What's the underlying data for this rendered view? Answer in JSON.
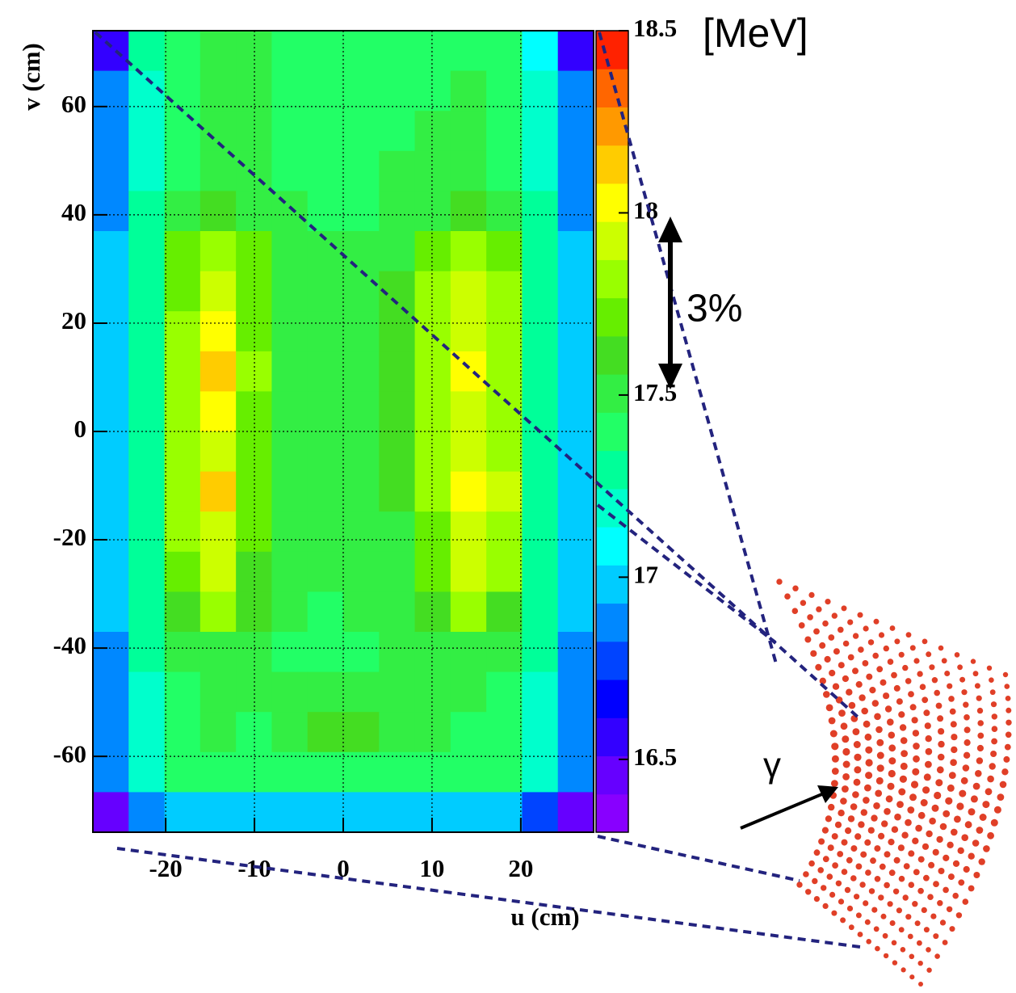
{
  "chart_data": {
    "type": "heatmap",
    "x_label": "u (cm)",
    "y_label": "v (cm)",
    "colorbar_unit": "[MeV]",
    "annotations": [
      "3%",
      "γ"
    ],
    "xlim": [
      -28.2,
      28.2
    ],
    "xticks": [
      -20,
      -10,
      0,
      10,
      20
    ],
    "ylim": [
      -74,
      74
    ],
    "yticks": [
      -60,
      -40,
      -20,
      0,
      20,
      40,
      60
    ],
    "zlim": [
      16.3,
      18.5
    ],
    "zticks": [
      16.5,
      17,
      17.5,
      18,
      18.5
    ],
    "grid": true,
    "colorscale": [
      "#8800ff",
      "#6600ff",
      "#3300ff",
      "#0000ff",
      "#0044ff",
      "#0088ff",
      "#00ccff",
      "#00ffff",
      "#00ffcc",
      "#00ff99",
      "#22ff66",
      "#33ee44",
      "#44dd22",
      "#66ee00",
      "#99ff00",
      "#ccff00",
      "#ffff00",
      "#ffcc00",
      "#ff9900",
      "#ff6600",
      "#ff2200"
    ],
    "z": [
      [
        16.6,
        17.3,
        17.4,
        17.5,
        17.5,
        17.45,
        17.45,
        17.45,
        17.45,
        17.45,
        17.4,
        17.4,
        17.1,
        16.6
      ],
      [
        16.9,
        17.2,
        17.45,
        17.55,
        17.5,
        17.45,
        17.45,
        17.45,
        17.45,
        17.45,
        17.5,
        17.45,
        17.2,
        16.9
      ],
      [
        16.9,
        17.2,
        17.45,
        17.55,
        17.5,
        17.45,
        17.4,
        17.4,
        17.45,
        17.5,
        17.5,
        17.45,
        17.2,
        16.9
      ],
      [
        16.9,
        17.2,
        17.45,
        17.55,
        17.5,
        17.45,
        17.45,
        17.45,
        17.5,
        17.5,
        17.55,
        17.45,
        17.2,
        16.9
      ],
      [
        16.9,
        17.25,
        17.5,
        17.6,
        17.55,
        17.5,
        17.45,
        17.45,
        17.5,
        17.55,
        17.6,
        17.5,
        17.25,
        16.9
      ],
      [
        16.95,
        17.3,
        17.7,
        17.85,
        17.7,
        17.55,
        17.5,
        17.5,
        17.55,
        17.7,
        17.85,
        17.7,
        17.3,
        16.95
      ],
      [
        16.95,
        17.3,
        17.75,
        17.95,
        17.75,
        17.55,
        17.5,
        17.5,
        17.6,
        17.8,
        17.95,
        17.8,
        17.3,
        16.95
      ],
      [
        16.95,
        17.3,
        17.8,
        18.0,
        17.75,
        17.55,
        17.5,
        17.5,
        17.6,
        17.85,
        17.95,
        17.85,
        17.3,
        16.95
      ],
      [
        16.95,
        17.3,
        17.85,
        18.1,
        17.8,
        17.55,
        17.5,
        17.5,
        17.6,
        17.85,
        18.0,
        17.85,
        17.3,
        16.95
      ],
      [
        16.95,
        17.3,
        17.8,
        18.0,
        17.75,
        17.55,
        17.5,
        17.5,
        17.6,
        17.8,
        17.95,
        17.85,
        17.3,
        16.95
      ],
      [
        16.95,
        17.3,
        17.8,
        17.95,
        17.75,
        17.55,
        17.5,
        17.5,
        17.6,
        17.8,
        17.95,
        17.85,
        17.3,
        16.95
      ],
      [
        16.95,
        17.3,
        17.85,
        18.1,
        17.75,
        17.55,
        17.5,
        17.5,
        17.6,
        17.8,
        18.0,
        17.9,
        17.3,
        16.95
      ],
      [
        16.95,
        17.3,
        17.8,
        17.95,
        17.7,
        17.55,
        17.5,
        17.5,
        17.55,
        17.75,
        17.95,
        17.85,
        17.3,
        16.95
      ],
      [
        16.95,
        17.3,
        17.75,
        17.9,
        17.65,
        17.5,
        17.5,
        17.5,
        17.55,
        17.7,
        17.9,
        17.8,
        17.3,
        16.95
      ],
      [
        16.95,
        17.25,
        17.6,
        17.8,
        17.6,
        17.5,
        17.45,
        17.5,
        17.5,
        17.6,
        17.8,
        17.6,
        17.25,
        16.95
      ],
      [
        16.9,
        17.25,
        17.5,
        17.55,
        17.5,
        17.45,
        17.45,
        17.45,
        17.5,
        17.5,
        17.55,
        17.5,
        17.25,
        16.9
      ],
      [
        16.9,
        17.2,
        17.45,
        17.5,
        17.5,
        17.5,
        17.55,
        17.55,
        17.5,
        17.5,
        17.5,
        17.45,
        17.2,
        16.9
      ],
      [
        16.9,
        17.2,
        17.45,
        17.5,
        17.45,
        17.55,
        17.6,
        17.6,
        17.55,
        17.5,
        17.45,
        17.45,
        17.2,
        16.9
      ],
      [
        16.9,
        17.15,
        17.4,
        17.45,
        17.45,
        17.45,
        17.45,
        17.45,
        17.45,
        17.45,
        17.4,
        17.4,
        17.15,
        16.9
      ],
      [
        16.5,
        16.9,
        17.0,
        17.0,
        17.0,
        16.95,
        16.95,
        16.95,
        16.95,
        16.95,
        17.0,
        16.95,
        16.8,
        16.5
      ]
    ]
  }
}
